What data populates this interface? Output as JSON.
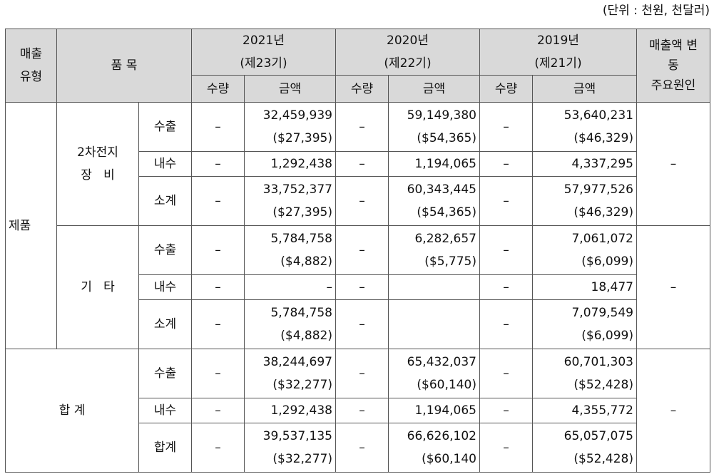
{
  "unit_note": "(단위 : 천원, 천달러)",
  "header": {
    "sales_type": [
      "매출",
      "유형"
    ],
    "item": "품 목",
    "years": [
      {
        "year": "2021년",
        "term": "(제23기)"
      },
      {
        "year": "2020년",
        "term": "(제22기)"
      },
      {
        "year": "2019년",
        "term": "(제21기)"
      }
    ],
    "qty": "수량",
    "amount": "금액",
    "change_reason": [
      "매출액 변",
      "동",
      "주요원인"
    ]
  },
  "groups": {
    "product": "제품",
    "battery_equipment": [
      "2차전지",
      "장   비"
    ],
    "other": "기   타",
    "total": "합 계"
  },
  "rows": [
    {
      "type": "수출",
      "q1": "–",
      "a1": [
        "32,459,939",
        "($27,395)"
      ],
      "q2": "–",
      "a2": [
        "59,149,380",
        "($54,365)"
      ],
      "q3": "–",
      "a3": [
        "53,640,231",
        "($46,329)"
      ]
    },
    {
      "type": "내수",
      "q1": "–",
      "a1": [
        "1,292,438"
      ],
      "q2": "–",
      "a2": [
        "1,194,065"
      ],
      "q3": "–",
      "a3": [
        "4,337,295"
      ],
      "reason": "–"
    },
    {
      "type": "소계",
      "q1": "–",
      "a1": [
        "33,752,377",
        "($27,395)"
      ],
      "q2": "–",
      "a2": [
        "60,343,445",
        "($54,365)"
      ],
      "q3": "–",
      "a3": [
        "57,977,526",
        "($46,329)"
      ]
    },
    {
      "type": "수출",
      "q1": "–",
      "a1": [
        "5,784,758",
        "($4,882)"
      ],
      "q2": "–",
      "a2": [
        "6,282,657",
        "($5,775)"
      ],
      "q3": "–",
      "a3": [
        "7,061,072",
        "($6,099)"
      ]
    },
    {
      "type": "내수",
      "q1": "–",
      "a1": [
        "–"
      ],
      "q2": "–",
      "a2": [
        ""
      ],
      "q3": "–",
      "a3": [
        "18,477"
      ],
      "reason": "–"
    },
    {
      "type": "소계",
      "q1": "–",
      "a1": [
        "5,784,758",
        "($4,882)"
      ],
      "q2": "–",
      "a2": [
        ""
      ],
      "q3": "–",
      "a3": [
        "7,079,549",
        "($6,099)"
      ]
    },
    {
      "type": "수출",
      "q1": "–",
      "a1": [
        "38,244,697",
        "($32,277)"
      ],
      "q2": "–",
      "a2": [
        "65,432,037",
        "($60,140)"
      ],
      "q3": "–",
      "a3": [
        "60,701,303",
        "($52,428)"
      ]
    },
    {
      "type": "내수",
      "q1": "–",
      "a1": [
        "1,292,438"
      ],
      "q2": "–",
      "a2": [
        "1,194,065"
      ],
      "q3": "–",
      "a3": [
        "4,355,772"
      ],
      "reason": "–"
    },
    {
      "type": "합계",
      "q1": "–",
      "a1": [
        "39,537,135",
        "($32,277)"
      ],
      "q2": "–",
      "a2": [
        "66,626,102",
        "($60,140"
      ],
      "q3": "–",
      "a3": [
        "65,057,075",
        "($52,428)"
      ]
    }
  ]
}
